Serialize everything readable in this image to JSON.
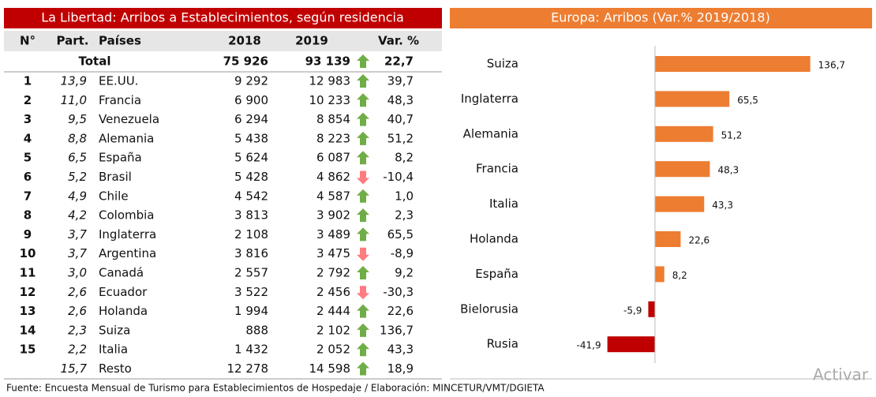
{
  "table": {
    "title": "La Libertad: Arribos a Establecimientos, según residencia",
    "headers": [
      "N°",
      "Part.",
      "Países",
      "2018",
      "2019",
      "Var. %"
    ],
    "total": {
      "label": "Total",
      "v2018": "75 926",
      "v2019": "93 139",
      "var": "22,7"
    },
    "rows": [
      [
        "1",
        "13,9",
        "EE.UU.",
        "9 292",
        "12 983",
        "39,7"
      ],
      [
        "2",
        "11,0",
        "Francia",
        "6 900",
        "10 233",
        "48,3"
      ],
      [
        "3",
        "9,5",
        "Venezuela",
        "6 294",
        "8 854",
        "40,7"
      ],
      [
        "4",
        "8,8",
        "Alemania",
        "5 438",
        "8 223",
        "51,2"
      ],
      [
        "5",
        "6,5",
        "España",
        "5 624",
        "6 087",
        "8,2"
      ],
      [
        "6",
        "5,2",
        "Brasil",
        "5 428",
        "4 862",
        "-10,4"
      ],
      [
        "7",
        "4,9",
        "Chile",
        "4 542",
        "4 587",
        "1,0"
      ],
      [
        "8",
        "4,2",
        "Colombia",
        "3 813",
        "3 902",
        "2,3"
      ],
      [
        "9",
        "3,7",
        "Inglaterra",
        "2 108",
        "3 489",
        "65,5"
      ],
      [
        "10",
        "3,7",
        "Argentina",
        "3 816",
        "3 475",
        "-8,9"
      ],
      [
        "11",
        "3,0",
        "Canadá",
        "2 557",
        "2 792",
        "9,2"
      ],
      [
        "12",
        "2,6",
        "Ecuador",
        "3 522",
        "2 456",
        "-30,3"
      ],
      [
        "13",
        "2,6",
        "Holanda",
        "1 994",
        "2 444",
        "22,6"
      ],
      [
        "14",
        "2,3",
        "Suiza",
        "888",
        "2 102",
        "136,7"
      ],
      [
        "15",
        "2,2",
        "Italia",
        "1 432",
        "2 052",
        "43,3"
      ]
    ],
    "rest": [
      "15,7",
      "Resto",
      "12 278",
      "14 598",
      "18,9"
    ]
  },
  "chart_data": {
    "type": "hbar",
    "title": "Europa: Arribos (Var.% 2019/2018)",
    "categories": [
      "Suiza",
      "Inglaterra",
      "Alemania",
      "Francia",
      "Italia",
      "Holanda",
      "España",
      "Bielorusia",
      "Rusia"
    ],
    "values": [
      136.7,
      65.5,
      51.2,
      48.3,
      43.3,
      22.6,
      8.2,
      -5.9,
      -41.9
    ],
    "value_labels": [
      "136,7",
      "65,5",
      "51,2",
      "48,3",
      "43,3",
      "22,6",
      "8,2",
      "-5,9",
      "-41,9"
    ],
    "color": "#ed7d31",
    "negative_color": "#c00000",
    "xlim": [
      -100,
      180
    ]
  },
  "footer": "Fuente: Encuesta Mensual de Turismo para Establecimientos de Hospedaje / Elaboración: MINCETUR/VMT/DGIETA",
  "watermark": "Activar"
}
